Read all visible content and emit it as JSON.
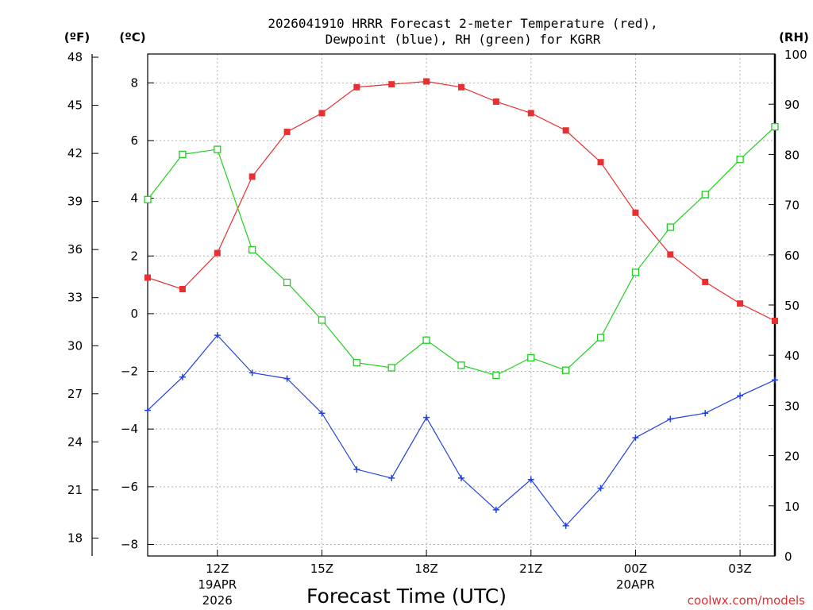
{
  "title_line1": "2026041910 HRRR Forecast 2-meter Temperature (red),",
  "title_line2": "Dewpoint (blue), RH (green) for KGRR",
  "axis_headers": {
    "fahrenheit": "(ºF)",
    "celsius": "(ºC)",
    "rh": "(RH)"
  },
  "xlabel": "Forecast Time (UTC)",
  "credit": "coolwx.com/models",
  "colors": {
    "temperature": "#e83030",
    "dewpoint": "#2040e0",
    "rh": "#20d020",
    "grid": "#b0b0b0",
    "credit": "#e03030"
  },
  "chart_data": {
    "type": "line",
    "title": "2026041910 HRRR Forecast 2-meter Temperature (red), Dewpoint (blue), RH (green) for KGRR",
    "x": [
      10,
      11,
      12,
      13,
      14,
      15,
      16,
      17,
      18,
      19,
      20,
      21,
      22,
      23,
      24,
      25,
      26,
      27,
      28
    ],
    "x_unit": "hours UTC from 19APR2026 00Z",
    "xlim": [
      10,
      28
    ],
    "x_ticks": [
      {
        "x": 12,
        "label": "12Z",
        "sub1": "19APR",
        "sub2": "2026"
      },
      {
        "x": 15,
        "label": "15Z",
        "sub1": "",
        "sub2": ""
      },
      {
        "x": 18,
        "label": "18Z",
        "sub1": "",
        "sub2": ""
      },
      {
        "x": 21,
        "label": "21Z",
        "sub1": "",
        "sub2": ""
      },
      {
        "x": 24,
        "label": "00Z",
        "sub1": "20APR",
        "sub2": ""
      },
      {
        "x": 27,
        "label": "03Z",
        "sub1": "",
        "sub2": ""
      }
    ],
    "y_celsius": {
      "lim": [
        -8.4,
        9.0
      ],
      "ticks": [
        -8,
        -6,
        -4,
        -2,
        0,
        2,
        4,
        6,
        8
      ]
    },
    "y_fahrenheit": {
      "ticks": [
        18,
        21,
        24,
        27,
        30,
        33,
        36,
        39,
        42,
        45,
        48
      ]
    },
    "y_rh": {
      "lim": [
        0,
        100
      ],
      "ticks": [
        0,
        10,
        20,
        30,
        40,
        50,
        60,
        70,
        80,
        90,
        100
      ]
    },
    "series": [
      {
        "name": "Temperature",
        "unit": "C",
        "axis": "celsius",
        "marker": "filled-square",
        "values": [
          1.25,
          0.85,
          2.1,
          4.75,
          6.3,
          6.95,
          7.85,
          7.95,
          8.05,
          7.85,
          7.35,
          6.95,
          6.35,
          5.25,
          3.5,
          2.05,
          1.1,
          0.35,
          -0.25
        ]
      },
      {
        "name": "Dewpoint",
        "unit": "C",
        "axis": "celsius",
        "marker": "plus",
        "values": [
          -3.35,
          -2.2,
          -0.75,
          -2.05,
          -2.25,
          -3.45,
          -5.4,
          -5.7,
          -3.6,
          -5.7,
          -6.8,
          -5.75,
          -7.35,
          -6.05,
          -4.3,
          -3.65,
          -3.45,
          -2.85,
          -2.3
        ]
      },
      {
        "name": "RH",
        "unit": "%",
        "axis": "rh",
        "marker": "open-square",
        "values": [
          71,
          80,
          81,
          61,
          54.5,
          47,
          38.5,
          37.5,
          43,
          38,
          36,
          39.5,
          37,
          43.5,
          56.5,
          65.5,
          72,
          79,
          85.5
        ]
      }
    ]
  }
}
